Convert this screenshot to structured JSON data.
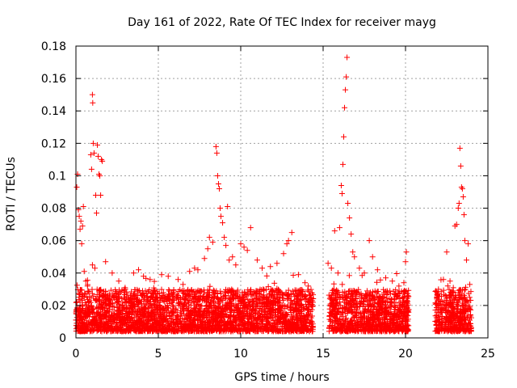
{
  "chart_data": {
    "type": "scatter",
    "title": "Day 161 of 2022, Rate Of TEC Index for receiver mayg",
    "xlabel": "GPS time / hours",
    "ylabel": "ROTI / TECUs",
    "xlim": [
      0,
      25
    ],
    "ylim": [
      0,
      0.18
    ],
    "xticks": [
      "0",
      "5",
      "10",
      "15",
      "20",
      "25"
    ],
    "yticks": [
      "0",
      "0.02",
      "0.04",
      "0.06",
      "0.08",
      "0.1",
      "0.12",
      "0.14",
      "0.16",
      "0.18"
    ],
    "grid": true,
    "marker": "+",
    "color": "#ff0000",
    "series": [
      {
        "points": [
          [
            0.05,
            0.093
          ],
          [
            0.1,
            0.101
          ],
          [
            0.15,
            0.079
          ],
          [
            0.2,
            0.075
          ],
          [
            0.25,
            0.067
          ],
          [
            0.3,
            0.072
          ],
          [
            0.35,
            0.058
          ],
          [
            0.4,
            0.069
          ],
          [
            0.45,
            0.081
          ],
          [
            0.5,
            0.041
          ],
          [
            0.6,
            0.035
          ],
          [
            0.7,
            0.032
          ],
          [
            0.9,
            0.113
          ],
          [
            0.95,
            0.104
          ],
          [
            1.0,
            0.15
          ],
          [
            1.02,
            0.145
          ],
          [
            1.05,
            0.12
          ],
          [
            1.1,
            0.114
          ],
          [
            1.2,
            0.088
          ],
          [
            1.25,
            0.077
          ],
          [
            1.3,
            0.119
          ],
          [
            1.35,
            0.112
          ],
          [
            1.4,
            0.101
          ],
          [
            1.45,
            0.1
          ],
          [
            1.5,
            0.088
          ],
          [
            1.55,
            0.11
          ],
          [
            1.6,
            0.109
          ],
          [
            1.0,
            0.045
          ],
          [
            1.15,
            0.043
          ],
          [
            1.8,
            0.047
          ],
          [
            2.2,
            0.04
          ],
          [
            2.6,
            0.035
          ],
          [
            3.0,
            0.03
          ],
          [
            3.5,
            0.04
          ],
          [
            3.8,
            0.042
          ],
          [
            4.1,
            0.038
          ],
          [
            4.5,
            0.036
          ],
          [
            5.2,
            0.039
          ],
          [
            5.6,
            0.038
          ],
          [
            6.2,
            0.036
          ],
          [
            6.5,
            0.033
          ],
          [
            6.9,
            0.041
          ],
          [
            7.2,
            0.043
          ],
          [
            7.4,
            0.042
          ],
          [
            7.8,
            0.049
          ],
          [
            8.0,
            0.055
          ],
          [
            8.1,
            0.062
          ],
          [
            8.3,
            0.059
          ],
          [
            8.5,
            0.118
          ],
          [
            8.55,
            0.114
          ],
          [
            8.6,
            0.1
          ],
          [
            8.65,
            0.095
          ],
          [
            8.7,
            0.092
          ],
          [
            8.75,
            0.08
          ],
          [
            8.8,
            0.075
          ],
          [
            8.9,
            0.071
          ],
          [
            9.0,
            0.062
          ],
          [
            9.1,
            0.057
          ],
          [
            9.2,
            0.081
          ],
          [
            9.3,
            0.048
          ],
          [
            9.5,
            0.05
          ],
          [
            9.7,
            0.045
          ],
          [
            10.0,
            0.058
          ],
          [
            10.2,
            0.056
          ],
          [
            10.4,
            0.054
          ],
          [
            10.6,
            0.068
          ],
          [
            11.0,
            0.048
          ],
          [
            11.3,
            0.043
          ],
          [
            11.8,
            0.044
          ],
          [
            12.2,
            0.046
          ],
          [
            12.6,
            0.052
          ],
          [
            12.8,
            0.058
          ],
          [
            12.9,
            0.06
          ],
          [
            13.1,
            0.065
          ],
          [
            13.5,
            0.039
          ],
          [
            13.9,
            0.034
          ],
          [
            14.1,
            0.032
          ],
          [
            15.3,
            0.046
          ],
          [
            15.5,
            0.043
          ],
          [
            15.7,
            0.066
          ],
          [
            15.9,
            0.04
          ],
          [
            16.0,
            0.068
          ],
          [
            16.1,
            0.094
          ],
          [
            16.15,
            0.089
          ],
          [
            16.2,
            0.107
          ],
          [
            16.25,
            0.124
          ],
          [
            16.3,
            0.142
          ],
          [
            16.35,
            0.153
          ],
          [
            16.4,
            0.161
          ],
          [
            16.45,
            0.173
          ],
          [
            16.5,
            0.083
          ],
          [
            16.6,
            0.074
          ],
          [
            16.7,
            0.064
          ],
          [
            16.8,
            0.053
          ],
          [
            16.9,
            0.05
          ],
          [
            17.2,
            0.043
          ],
          [
            17.5,
            0.04
          ],
          [
            17.8,
            0.06
          ],
          [
            18.0,
            0.05
          ],
          [
            18.3,
            0.042
          ],
          [
            18.8,
            0.037
          ],
          [
            19.2,
            0.035
          ],
          [
            19.6,
            0.032
          ],
          [
            19.9,
            0.034
          ],
          [
            20.0,
            0.047
          ],
          [
            20.05,
            0.053
          ],
          [
            22.0,
            0.03
          ],
          [
            22.3,
            0.036
          ],
          [
            22.5,
            0.053
          ],
          [
            22.7,
            0.035
          ],
          [
            22.9,
            0.031
          ],
          [
            23.0,
            0.069
          ],
          [
            23.1,
            0.07
          ],
          [
            23.2,
            0.08
          ],
          [
            23.25,
            0.083
          ],
          [
            23.3,
            0.117
          ],
          [
            23.35,
            0.106
          ],
          [
            23.4,
            0.093
          ],
          [
            23.45,
            0.092
          ],
          [
            23.5,
            0.087
          ],
          [
            23.55,
            0.076
          ],
          [
            23.6,
            0.06
          ],
          [
            23.7,
            0.048
          ],
          [
            23.8,
            0.058
          ],
          [
            23.9,
            0.033
          ]
        ]
      }
    ]
  }
}
